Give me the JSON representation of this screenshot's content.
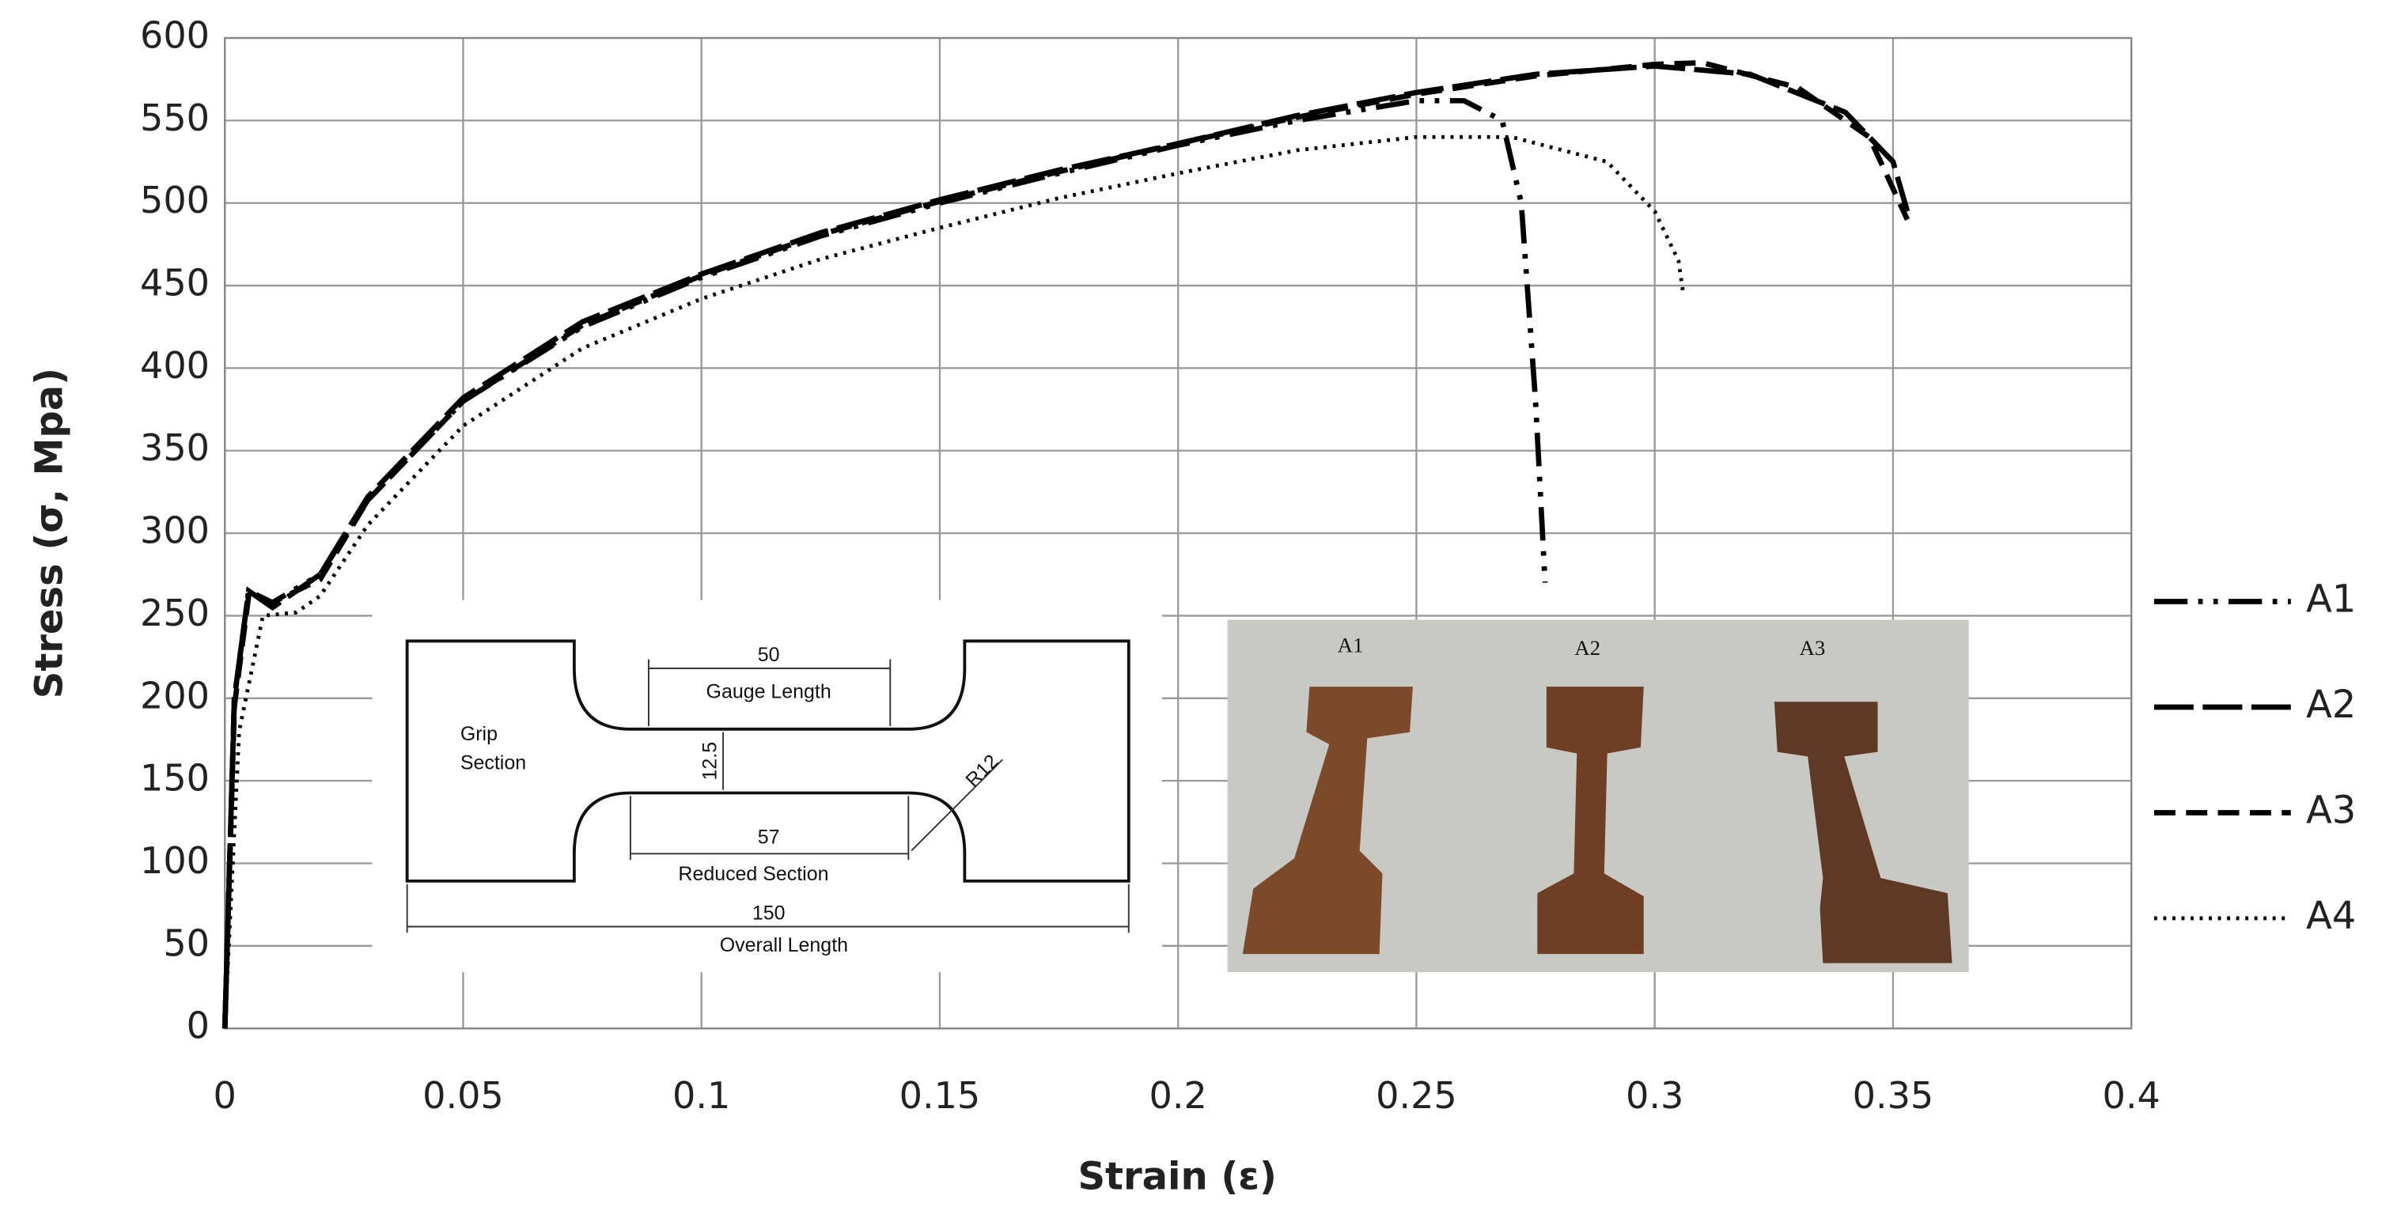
{
  "chart_data": {
    "type": "line",
    "x_label": "Strain (ε)",
    "y_label": "Stress (σ, Mpa)",
    "xlim": [
      0,
      0.4
    ],
    "ylim": [
      0,
      600
    ],
    "xticks": [
      0,
      0.05,
      0.1,
      0.15,
      0.2,
      0.25,
      0.3,
      0.35,
      0.4
    ],
    "yticks": [
      0,
      50,
      100,
      150,
      200,
      250,
      300,
      350,
      400,
      450,
      500,
      550,
      600
    ],
    "grid": true,
    "legend": "right",
    "series": [
      {
        "name": "A1",
        "color": "#000000",
        "dash": "dashdotdot",
        "x": [
          0,
          0.002,
          0.005,
          0.01,
          0.02,
          0.03,
          0.05,
          0.075,
          0.1,
          0.125,
          0.15,
          0.175,
          0.2,
          0.225,
          0.25,
          0.26,
          0.268,
          0.272,
          0.275,
          0.277
        ],
        "values": [
          0,
          200,
          265,
          258,
          275,
          320,
          380,
          425,
          455,
          480,
          500,
          518,
          535,
          550,
          562,
          562,
          550,
          500,
          380,
          270
        ]
      },
      {
        "name": "A2",
        "color": "#000000",
        "dash": "longdash",
        "x": [
          0,
          0.002,
          0.005,
          0.01,
          0.02,
          0.03,
          0.05,
          0.075,
          0.1,
          0.125,
          0.15,
          0.175,
          0.2,
          0.225,
          0.25,
          0.275,
          0.3,
          0.32,
          0.34,
          0.35,
          0.353
        ],
        "values": [
          0,
          200,
          265,
          255,
          275,
          322,
          382,
          428,
          457,
          482,
          502,
          520,
          536,
          553,
          567,
          578,
          583,
          578,
          555,
          525,
          495
        ]
      },
      {
        "name": "A3",
        "color": "#000000",
        "dash": "dash",
        "x": [
          0,
          0.002,
          0.005,
          0.01,
          0.02,
          0.03,
          0.05,
          0.075,
          0.1,
          0.125,
          0.15,
          0.175,
          0.2,
          0.225,
          0.25,
          0.275,
          0.3,
          0.31,
          0.33,
          0.345,
          0.353
        ],
        "values": [
          0,
          195,
          262,
          258,
          272,
          320,
          380,
          426,
          456,
          481,
          501,
          519,
          536,
          552,
          566,
          577,
          584,
          585,
          570,
          540,
          490
        ]
      },
      {
        "name": "A4",
        "color": "#000000",
        "dash": "dot",
        "x": [
          0,
          0.003,
          0.008,
          0.015,
          0.02,
          0.03,
          0.05,
          0.075,
          0.1,
          0.125,
          0.15,
          0.175,
          0.2,
          0.225,
          0.25,
          0.27,
          0.29,
          0.3,
          0.305,
          0.306
        ],
        "values": [
          0,
          180,
          250,
          252,
          262,
          305,
          365,
          412,
          442,
          466,
          485,
          503,
          518,
          532,
          540,
          540,
          525,
          495,
          465,
          445
        ]
      }
    ],
    "drawing_labels": [
      "50",
      "Gauge Length",
      "Grip",
      "Section",
      "12.5",
      "R12",
      "57",
      "Reduced Section",
      "150",
      "Overall Length"
    ],
    "photo_labels": [
      "A1",
      "A2",
      "A3"
    ]
  }
}
